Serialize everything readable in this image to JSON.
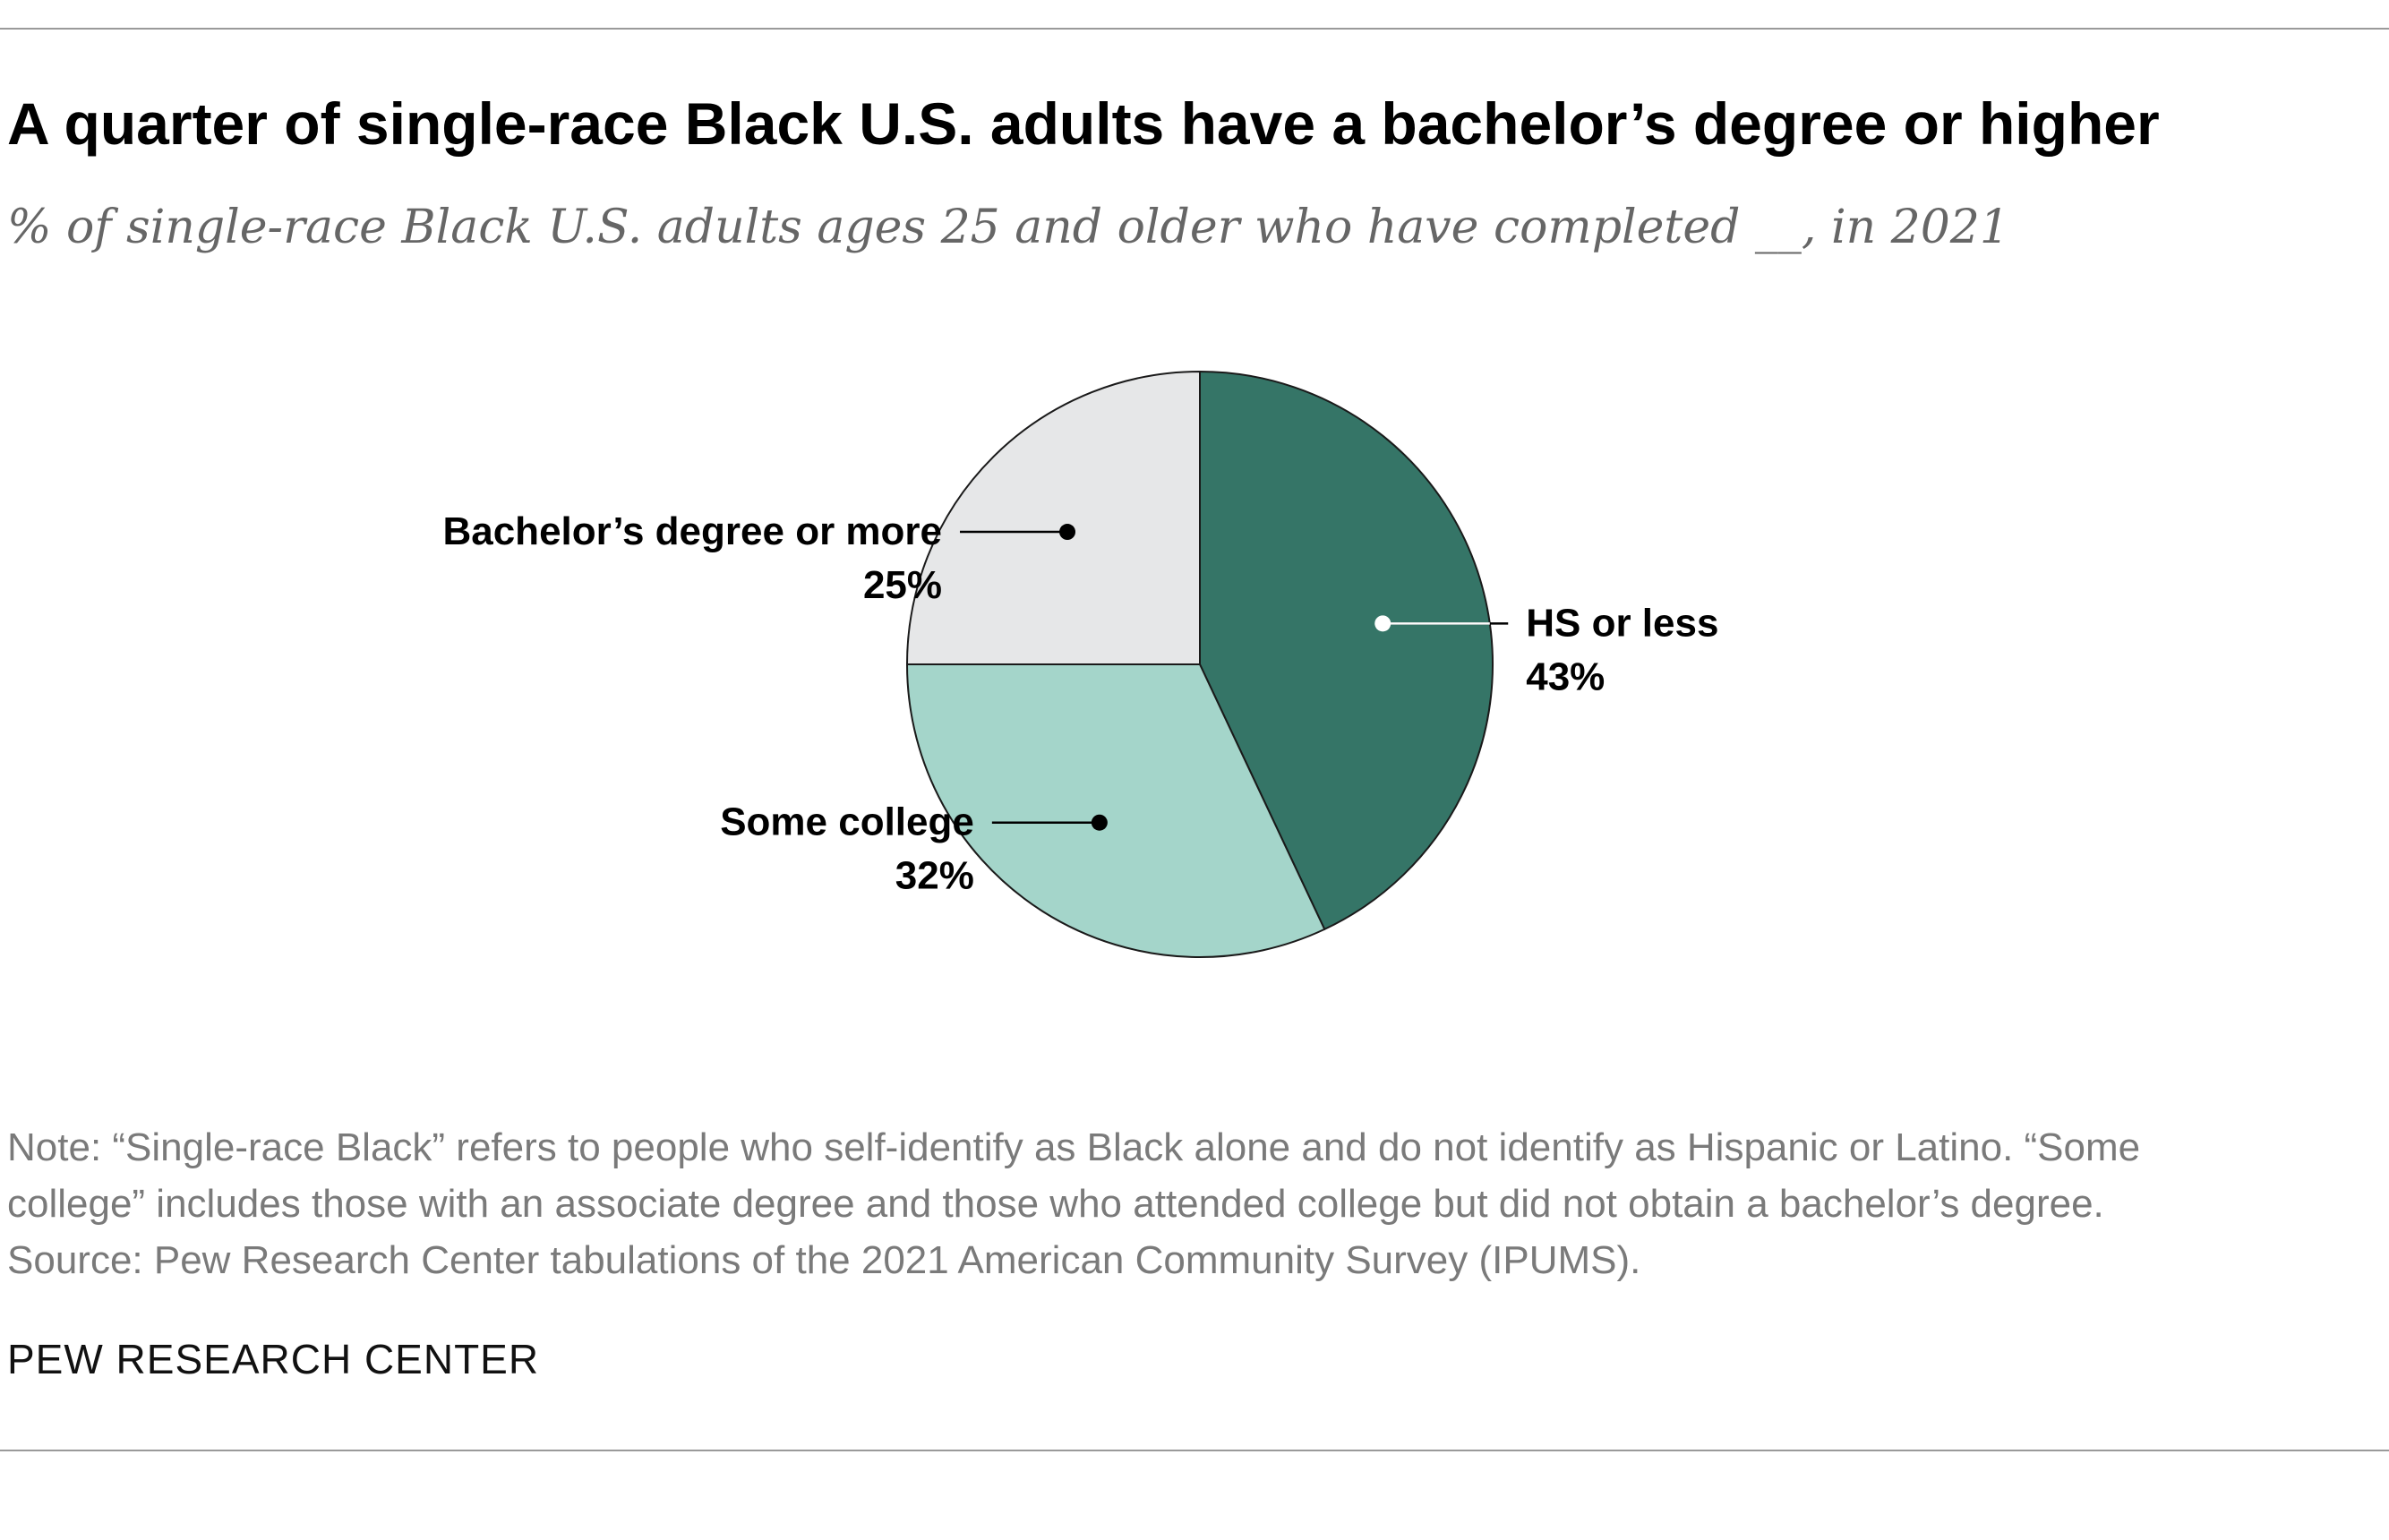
{
  "title": "A quarter of single-race Black U.S. adults have a bachelor’s degree or higher",
  "subtitle": "% of single-race Black U.S. adults ages 25 and older who have completed __, in 2021",
  "chart_data": {
    "type": "pie",
    "title": "A quarter of single-race Black U.S. adults have a bachelor’s degree or higher",
    "subtitle": "% of single-race Black U.S. adults ages 25 and older who have completed __, in 2021",
    "unit": "%",
    "slices": [
      {
        "label": "HS or less",
        "value": 43,
        "value_label": "43%",
        "color": "#357567"
      },
      {
        "label": "Some college",
        "value": 32,
        "value_label": "32%",
        "color": "#a4d5ca"
      },
      {
        "label": "Bachelor’s degree or more",
        "value": 25,
        "value_label": "25%",
        "color": "#e6e7e8"
      }
    ]
  },
  "note": {
    "lines": [
      "Note: “Single-race Black” refers to people who self-identify as Black alone and do not identify as Hispanic or Latino. “Some",
      "college” includes those with an associate degree and those who attended college but did not obtain a bachelor’s degree.",
      "Source: Pew Research Center tabulations of the 2021 American Community Survey (IPUMS)."
    ]
  },
  "brand": "PEW RESEARCH CENTER"
}
